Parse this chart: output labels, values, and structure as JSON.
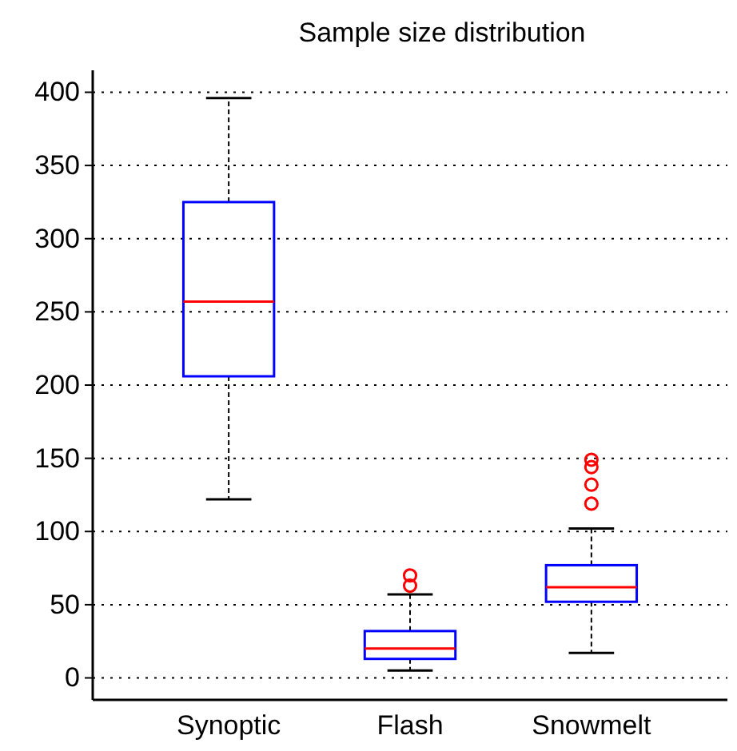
{
  "chart_data": {
    "type": "box",
    "title": "Sample size distribution",
    "categories": [
      "Synoptic",
      "Flash",
      "Snowmelt"
    ],
    "boxes": [
      {
        "low": 122,
        "q1": 206,
        "median": 257,
        "q3": 325,
        "high": 396
      },
      {
        "low": 5,
        "q1": 13,
        "median": 20,
        "q3": 32,
        "high": 57,
        "outliers": [
          63,
          70
        ]
      },
      {
        "low": 17,
        "q1": 52,
        "median": 62,
        "q3": 77,
        "high": 102,
        "outliers": [
          119,
          132,
          144,
          149
        ]
      }
    ],
    "ylim": [
      -15,
      415
    ],
    "yticks": [
      0,
      50,
      100,
      150,
      200,
      250,
      300,
      350,
      400
    ],
    "grid": "y",
    "marker": "circle"
  }
}
